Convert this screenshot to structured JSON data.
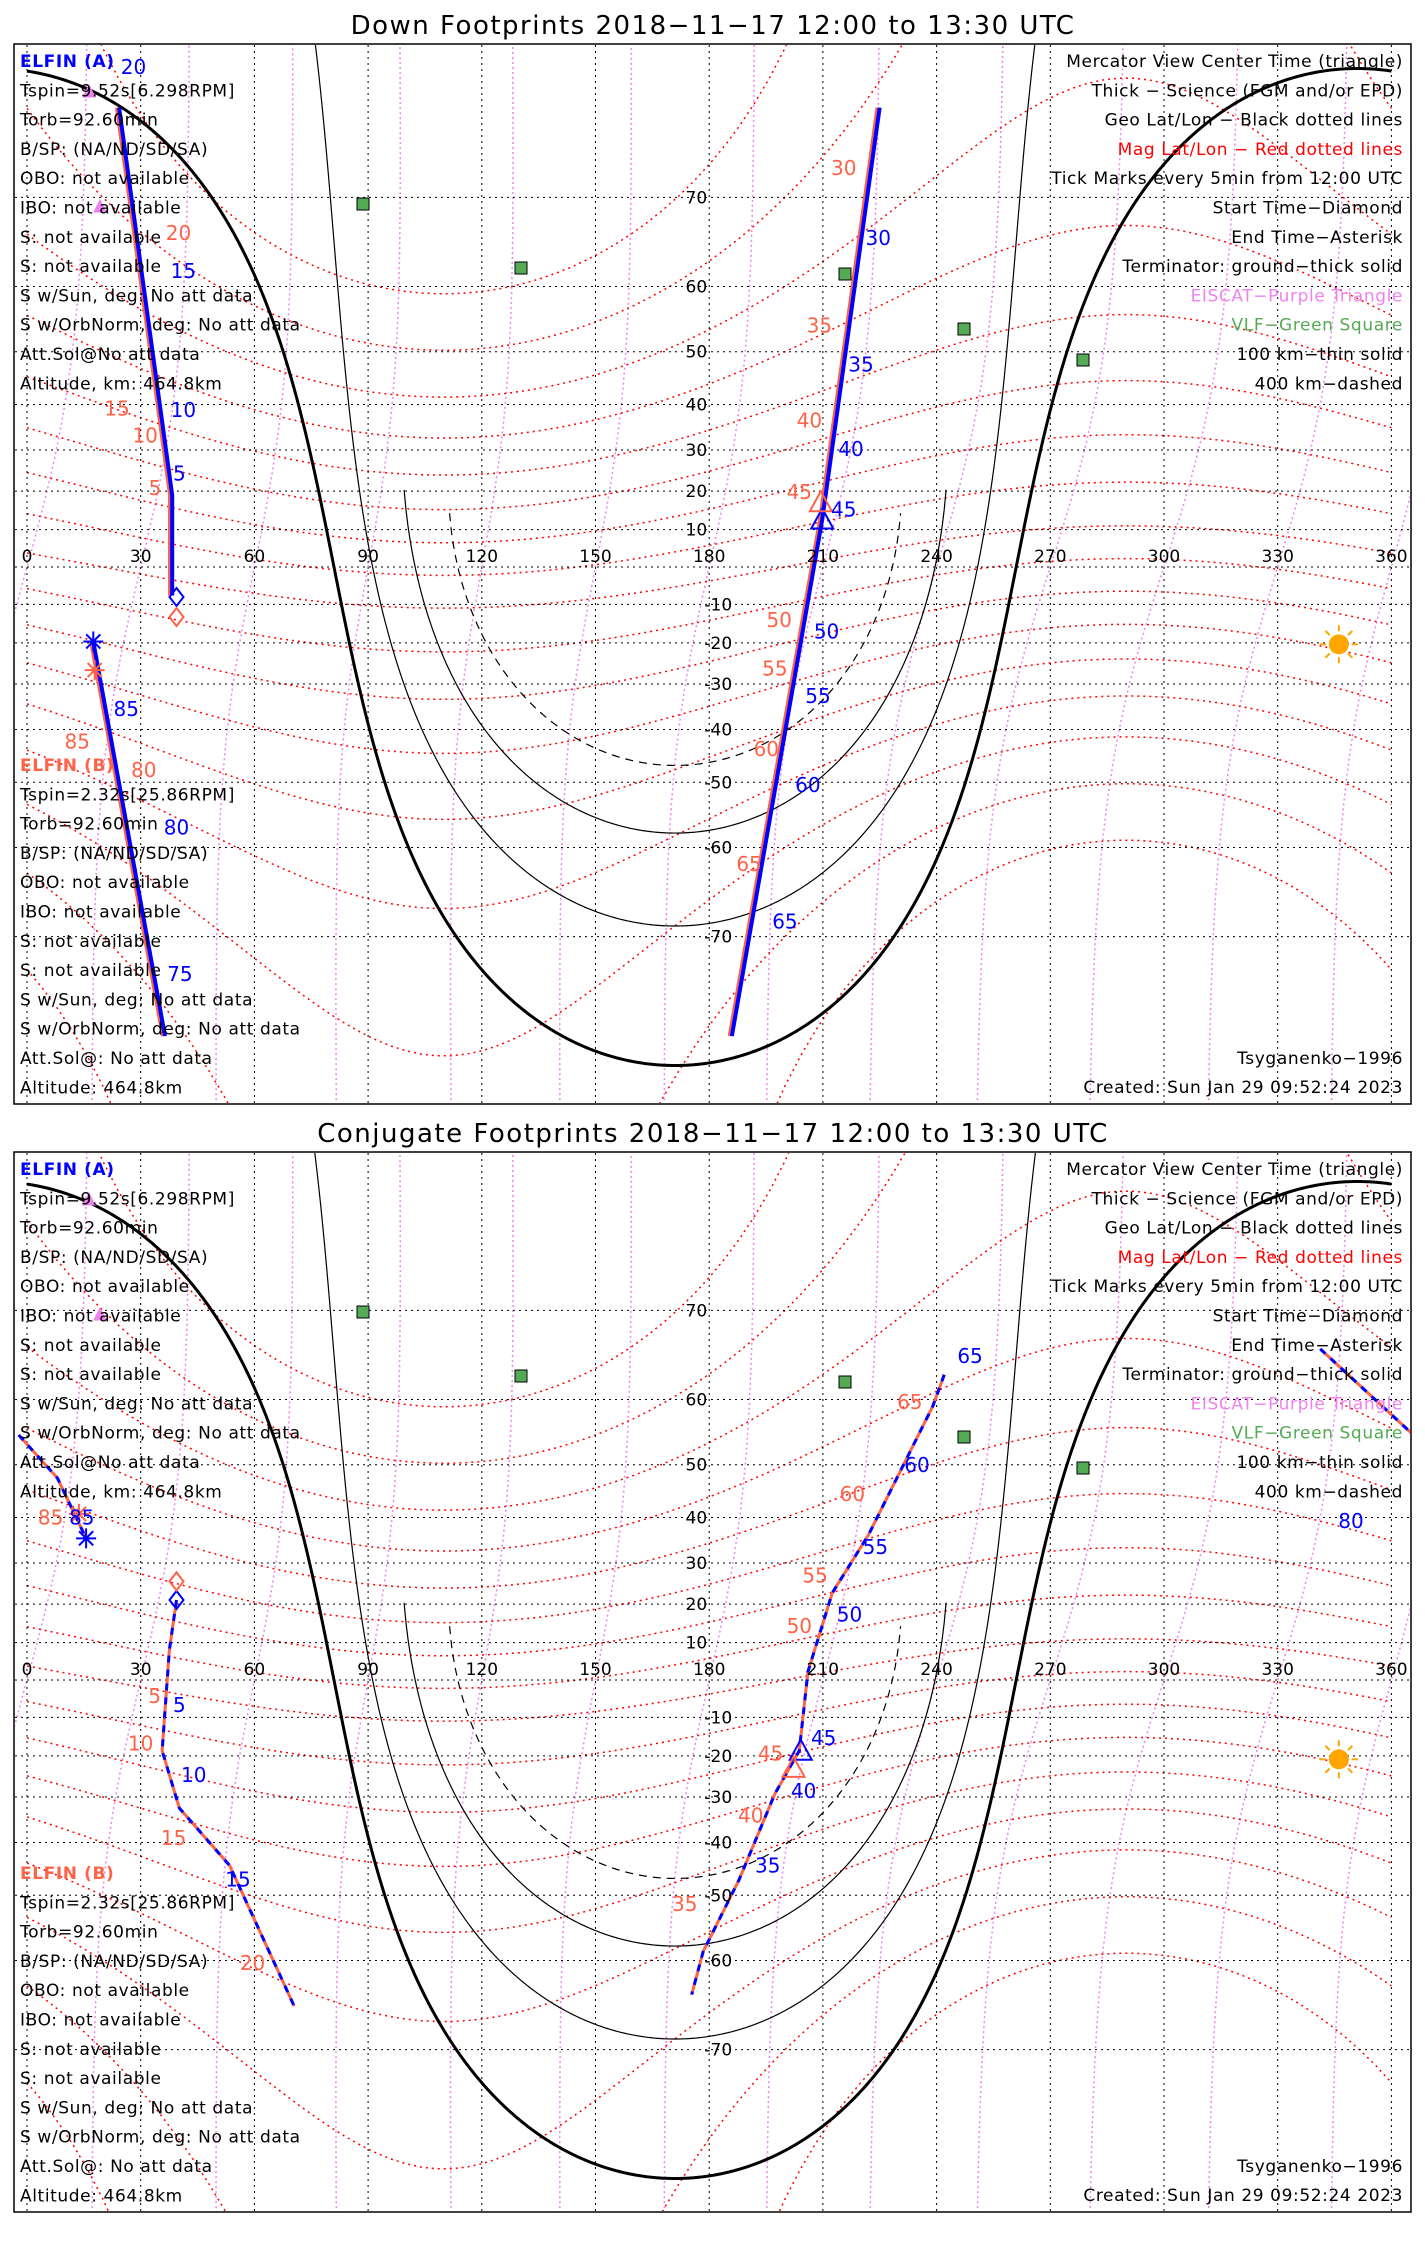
{
  "panels": [
    {
      "title": "Down Footprints 2018−11−17 12:00 to 13:30 UTC",
      "track_a_labels": [
        "20",
        "15",
        "10",
        "5",
        "30",
        "35",
        "40",
        "45",
        "50",
        "55",
        "60",
        "65",
        "85",
        "80",
        "75"
      ],
      "track_b_labels": [
        "20",
        "15",
        "10",
        "5",
        "30",
        "35",
        "40",
        "45",
        "50",
        "55",
        "60",
        "65",
        "85",
        "80"
      ]
    },
    {
      "title": "Conjugate Footprints 2018−11−17 12:00 to 13:30 UTC",
      "track_a_labels": [
        "85",
        "80",
        "5",
        "10",
        "15",
        "65",
        "60",
        "55",
        "50",
        "45",
        "40",
        "35"
      ],
      "track_b_labels": [
        "85",
        "5",
        "10",
        "15",
        "20",
        "65",
        "60",
        "55",
        "50",
        "45",
        "40",
        "35"
      ]
    }
  ],
  "elfin_a": {
    "name": "ELFIN (A)",
    "lines": [
      "Tspin=9.52s[6.298RPM]",
      "Torb=92.60min",
      "B/SP: (NA/ND/SD/SA)",
      "OBO: not available",
      "IBO: not available",
      "S: not available",
      "S: not available",
      "S w/Sun, deg: No att data",
      "S w/OrbNorm, deg: No att data",
      "Att.Sol@No att data",
      "Altitude, km: 464.8km"
    ]
  },
  "elfin_b": {
    "name": "ELFIN (B)",
    "lines": [
      "Tspin=2.32s[25.86RPM]",
      "Torb=92.60min",
      "B/SP: (NA/ND/SD/SA)",
      "OBO: not available",
      "IBO: not available",
      "S: not available",
      "S: not available",
      "S w/Sun, deg: No att data",
      "S w/OrbNorm, deg: No att data",
      "Att.Sol@: No att data",
      "Altitude: 464.8km"
    ]
  },
  "legend": [
    {
      "text": "Mercator View Center Time (triangle)",
      "color": "#000000"
    },
    {
      "text": "Thick − Science (FGM and/or EPD)",
      "color": "#000000"
    },
    {
      "text": "Geo Lat/Lon − Black dotted lines",
      "color": "#000000"
    },
    {
      "text": "Mag Lat/Lon − Red dotted lines",
      "color": "#ff0000"
    },
    {
      "text": "Tick Marks every 5min from 12:00 UTC",
      "color": "#000000"
    },
    {
      "text": "Start Time−Diamond",
      "color": "#000000"
    },
    {
      "text": "End Time−Asterisk",
      "color": "#000000"
    },
    {
      "text": "Terminator: ground−thick solid",
      "color": "#000000"
    },
    {
      "text": "EISCAT−Purple Triangle",
      "color": "#ee82ee"
    },
    {
      "text": "VLF−Green Square",
      "color": "#55aa55"
    },
    {
      "text": "100 km−thin solid",
      "color": "#000000"
    },
    {
      "text": "400 km−dashed",
      "color": "#000000"
    }
  ],
  "footer": {
    "model": "Tsyganenko−1996",
    "created": "Created: Sun Jan 29 09:52:24 2023"
  },
  "axes": {
    "lon_labels": [
      "0",
      "30",
      "60",
      "90",
      "120",
      "150",
      "180",
      "210",
      "240",
      "270",
      "300",
      "330",
      "360"
    ],
    "lat_labels": [
      "70",
      "60",
      "50",
      "40",
      "30",
      "20",
      "10",
      "-10",
      "-20",
      "-30",
      "-40",
      "-50",
      "-60",
      "-70"
    ]
  },
  "colors": {
    "elfin_a": "#0000ff",
    "elfin_b": "#ff6347",
    "mag_grid": "#ff0000",
    "mag_lon": "#ee82ee",
    "vlf": "#55aa55",
    "sun": "#ffa500",
    "coast": "#999999"
  }
}
